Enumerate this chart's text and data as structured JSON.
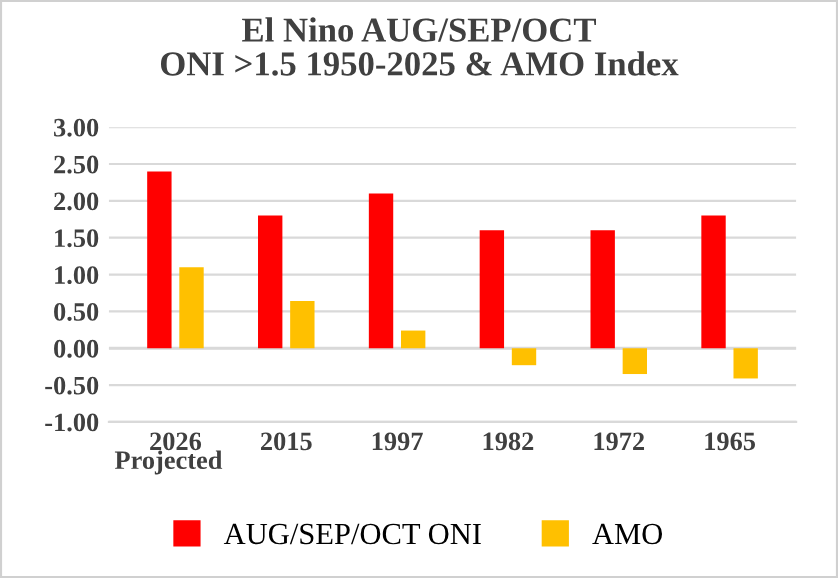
{
  "chart_data": {
    "type": "bar",
    "title": "El Nino AUG/SEP/OCT\nONI >1.5 1950-2025 & AMO Index",
    "categories": [
      "2026",
      "2015",
      "1997",
      "1982",
      "1972",
      "1965"
    ],
    "series": [
      {
        "name": "AUG/SEP/OCT ONI",
        "color": "#ff0000",
        "values": [
          2.4,
          1.8,
          2.1,
          1.6,
          1.6,
          1.8
        ]
      },
      {
        "name": "AMO",
        "color": "#ffc000",
        "values": [
          1.1,
          0.64,
          0.24,
          -0.23,
          -0.35,
          -0.41
        ]
      }
    ],
    "ylim": [
      -1.0,
      3.0
    ],
    "yticks": [
      {
        "value": -1.0,
        "label": "-1.00"
      },
      {
        "value": -0.5,
        "label": "-0.50"
      },
      {
        "value": 0.0,
        "label": "0.00"
      },
      {
        "value": 0.5,
        "label": "0.50"
      },
      {
        "value": 1.0,
        "label": "1.00"
      },
      {
        "value": 1.5,
        "label": "1.50"
      },
      {
        "value": 2.0,
        "label": "2.00"
      },
      {
        "value": 2.5,
        "label": "2.50"
      },
      {
        "value": 3.0,
        "label": "3.00"
      }
    ],
    "grid": "y",
    "legend": "bottom",
    "annotations": [
      "Projected"
    ]
  }
}
